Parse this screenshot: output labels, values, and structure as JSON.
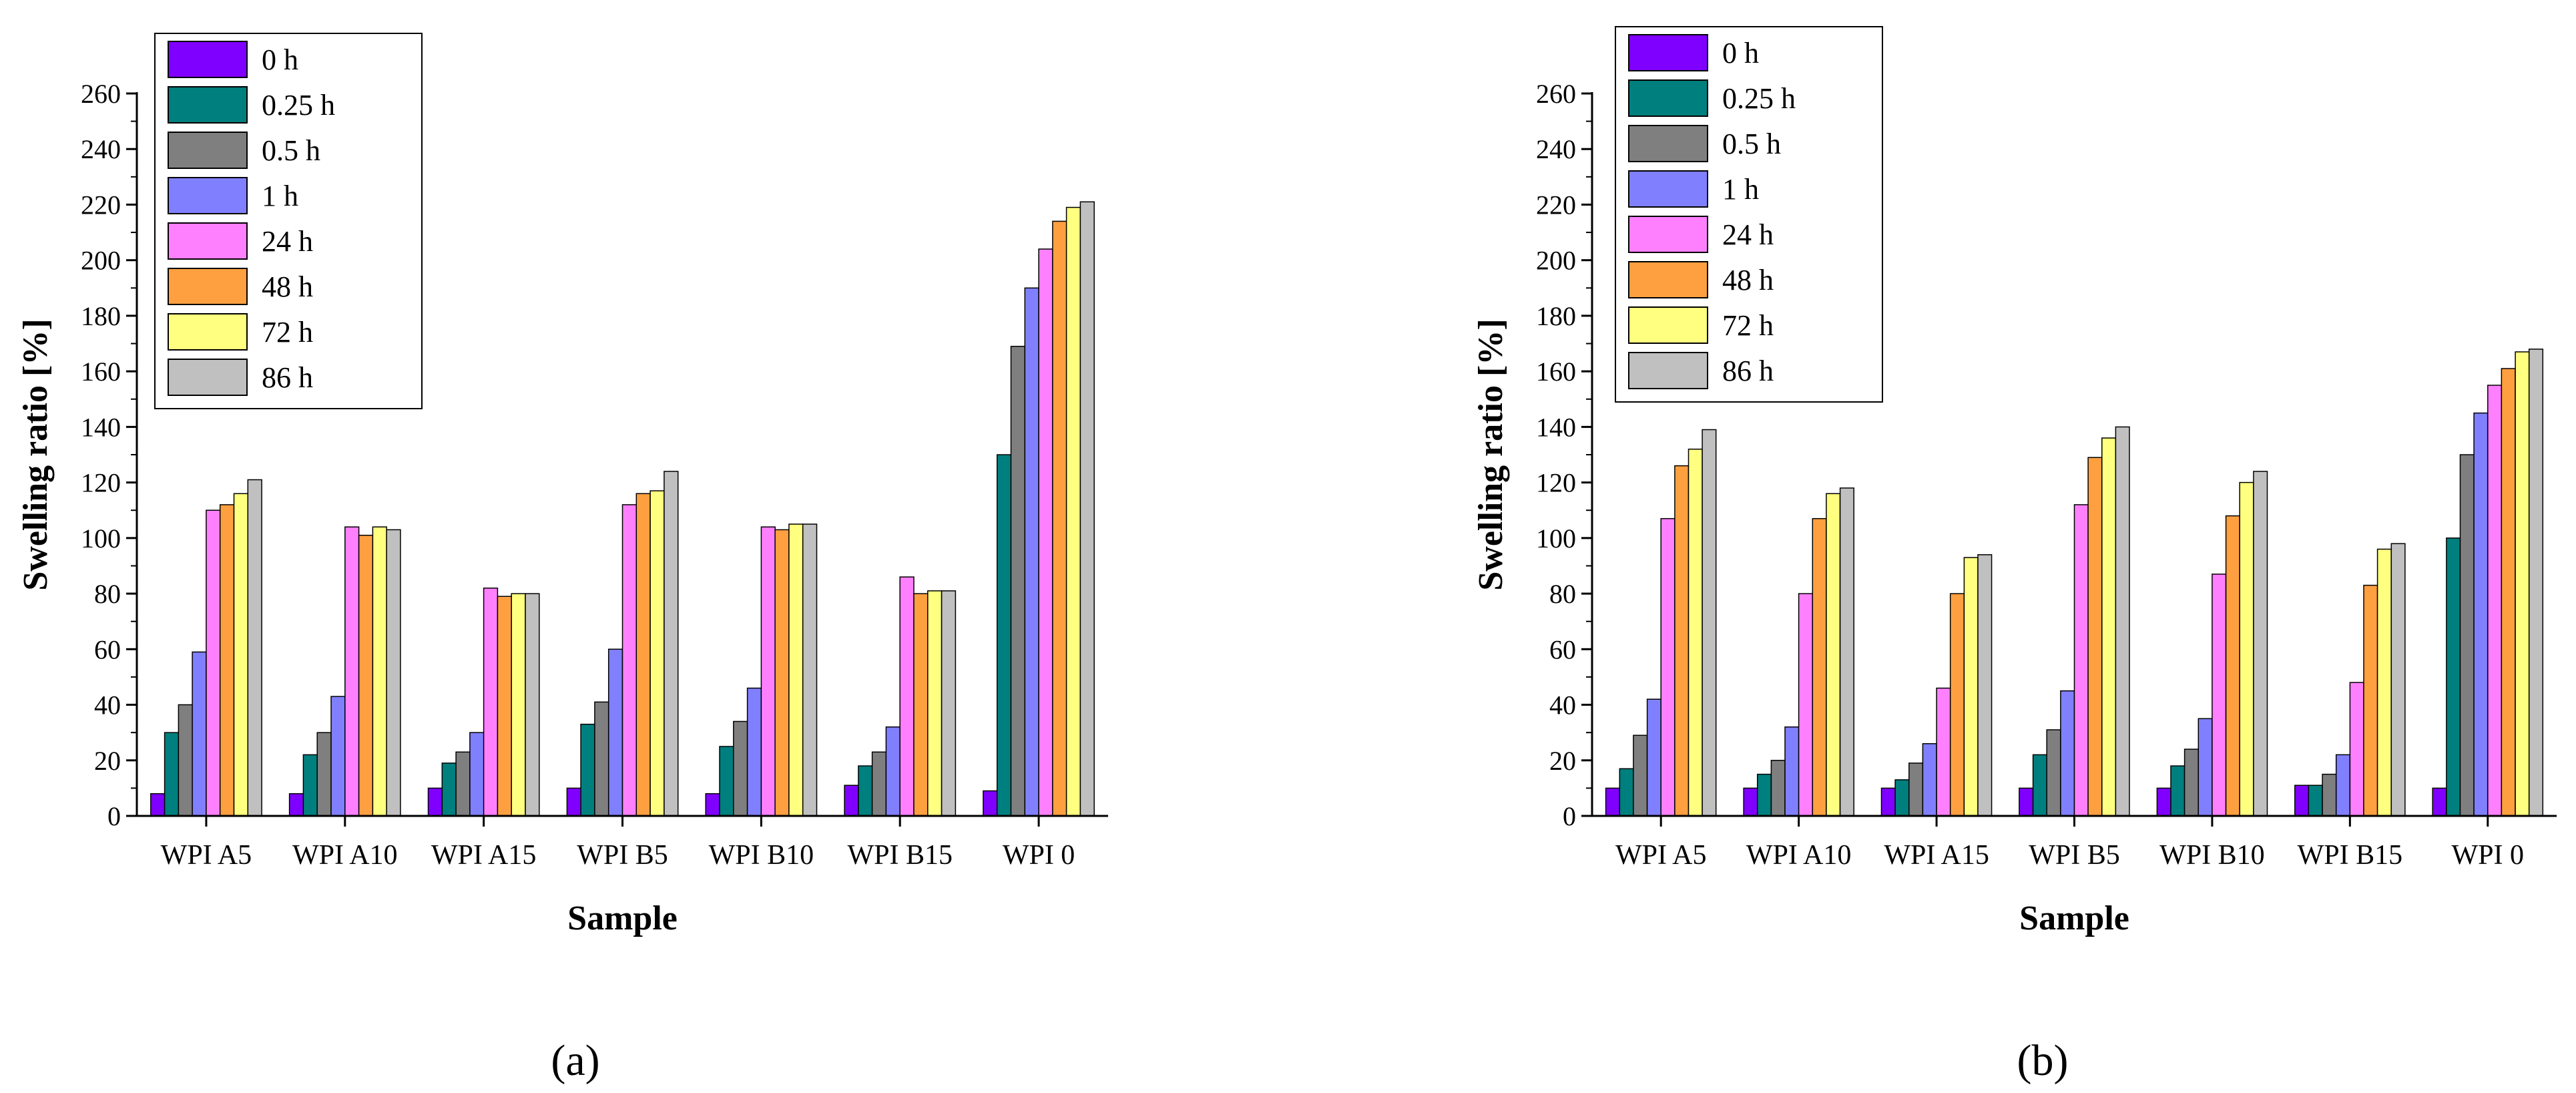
{
  "colors": {
    "0 h": "#8000ff",
    "0.25 h": "#007f7f",
    "0.5 h": "#7f7f7f",
    "1 h": "#8080ff",
    "24 h": "#ff80ff",
    "48 h": "#ffa040",
    "72 h": "#ffff80",
    "86 h": "#c0c0c0"
  },
  "chart_data": [
    {
      "type": "bar",
      "panel_label": "(a)",
      "xlabel": "Sample",
      "ylabel": "Swelling ratio [%]",
      "ylim": [
        0,
        260
      ],
      "yticks": [
        0,
        20,
        40,
        60,
        80,
        100,
        120,
        140,
        160,
        180,
        200,
        220,
        240,
        260
      ],
      "legend_position": "top-left",
      "categories": [
        "WPI A5",
        "WPI A10",
        "WPI A15",
        "WPI B5",
        "WPI B10",
        "WPI B15",
        "WPI 0"
      ],
      "series": [
        {
          "name": "0 h",
          "values": [
            8,
            8,
            10,
            10,
            8,
            11,
            9
          ]
        },
        {
          "name": "0.25 h",
          "values": [
            30,
            22,
            19,
            33,
            25,
            18,
            130
          ]
        },
        {
          "name": "0.5 h",
          "values": [
            40,
            30,
            23,
            41,
            34,
            23,
            169
          ]
        },
        {
          "name": "1 h",
          "values": [
            59,
            43,
            30,
            60,
            46,
            32,
            190
          ]
        },
        {
          "name": "24 h",
          "values": [
            110,
            104,
            82,
            112,
            104,
            86,
            204
          ]
        },
        {
          "name": "48 h",
          "values": [
            112,
            101,
            79,
            116,
            103,
            80,
            214
          ]
        },
        {
          "name": "72 h",
          "values": [
            116,
            104,
            80,
            117,
            105,
            81,
            219
          ]
        },
        {
          "name": "86 h",
          "values": [
            121,
            103,
            80,
            124,
            105,
            81,
            221
          ]
        }
      ]
    },
    {
      "type": "bar",
      "panel_label": "(b)",
      "xlabel": "Sample",
      "ylabel": "Swelling ratio [%]",
      "ylim": [
        0,
        260
      ],
      "yticks": [
        0,
        20,
        40,
        60,
        80,
        100,
        120,
        140,
        160,
        180,
        200,
        220,
        240,
        260
      ],
      "legend_position": "top-left",
      "categories": [
        "WPI A5",
        "WPI A10",
        "WPI A15",
        "WPI B5",
        "WPI B10",
        "WPI B15",
        "WPI 0"
      ],
      "series": [
        {
          "name": "0 h",
          "values": [
            10,
            10,
            10,
            10,
            10,
            11,
            10
          ]
        },
        {
          "name": "0.25 h",
          "values": [
            17,
            15,
            13,
            22,
            18,
            11,
            100
          ]
        },
        {
          "name": "0.5 h",
          "values": [
            29,
            20,
            19,
            31,
            24,
            15,
            130
          ]
        },
        {
          "name": "1 h",
          "values": [
            42,
            32,
            26,
            45,
            35,
            22,
            145
          ]
        },
        {
          "name": "24 h",
          "values": [
            107,
            80,
            46,
            112,
            87,
            48,
            155
          ]
        },
        {
          "name": "48 h",
          "values": [
            126,
            107,
            80,
            129,
            108,
            83,
            161
          ]
        },
        {
          "name": "72 h",
          "values": [
            132,
            116,
            93,
            136,
            120,
            96,
            167
          ]
        },
        {
          "name": "86 h",
          "values": [
            139,
            118,
            94,
            140,
            124,
            98,
            168
          ]
        }
      ]
    }
  ]
}
